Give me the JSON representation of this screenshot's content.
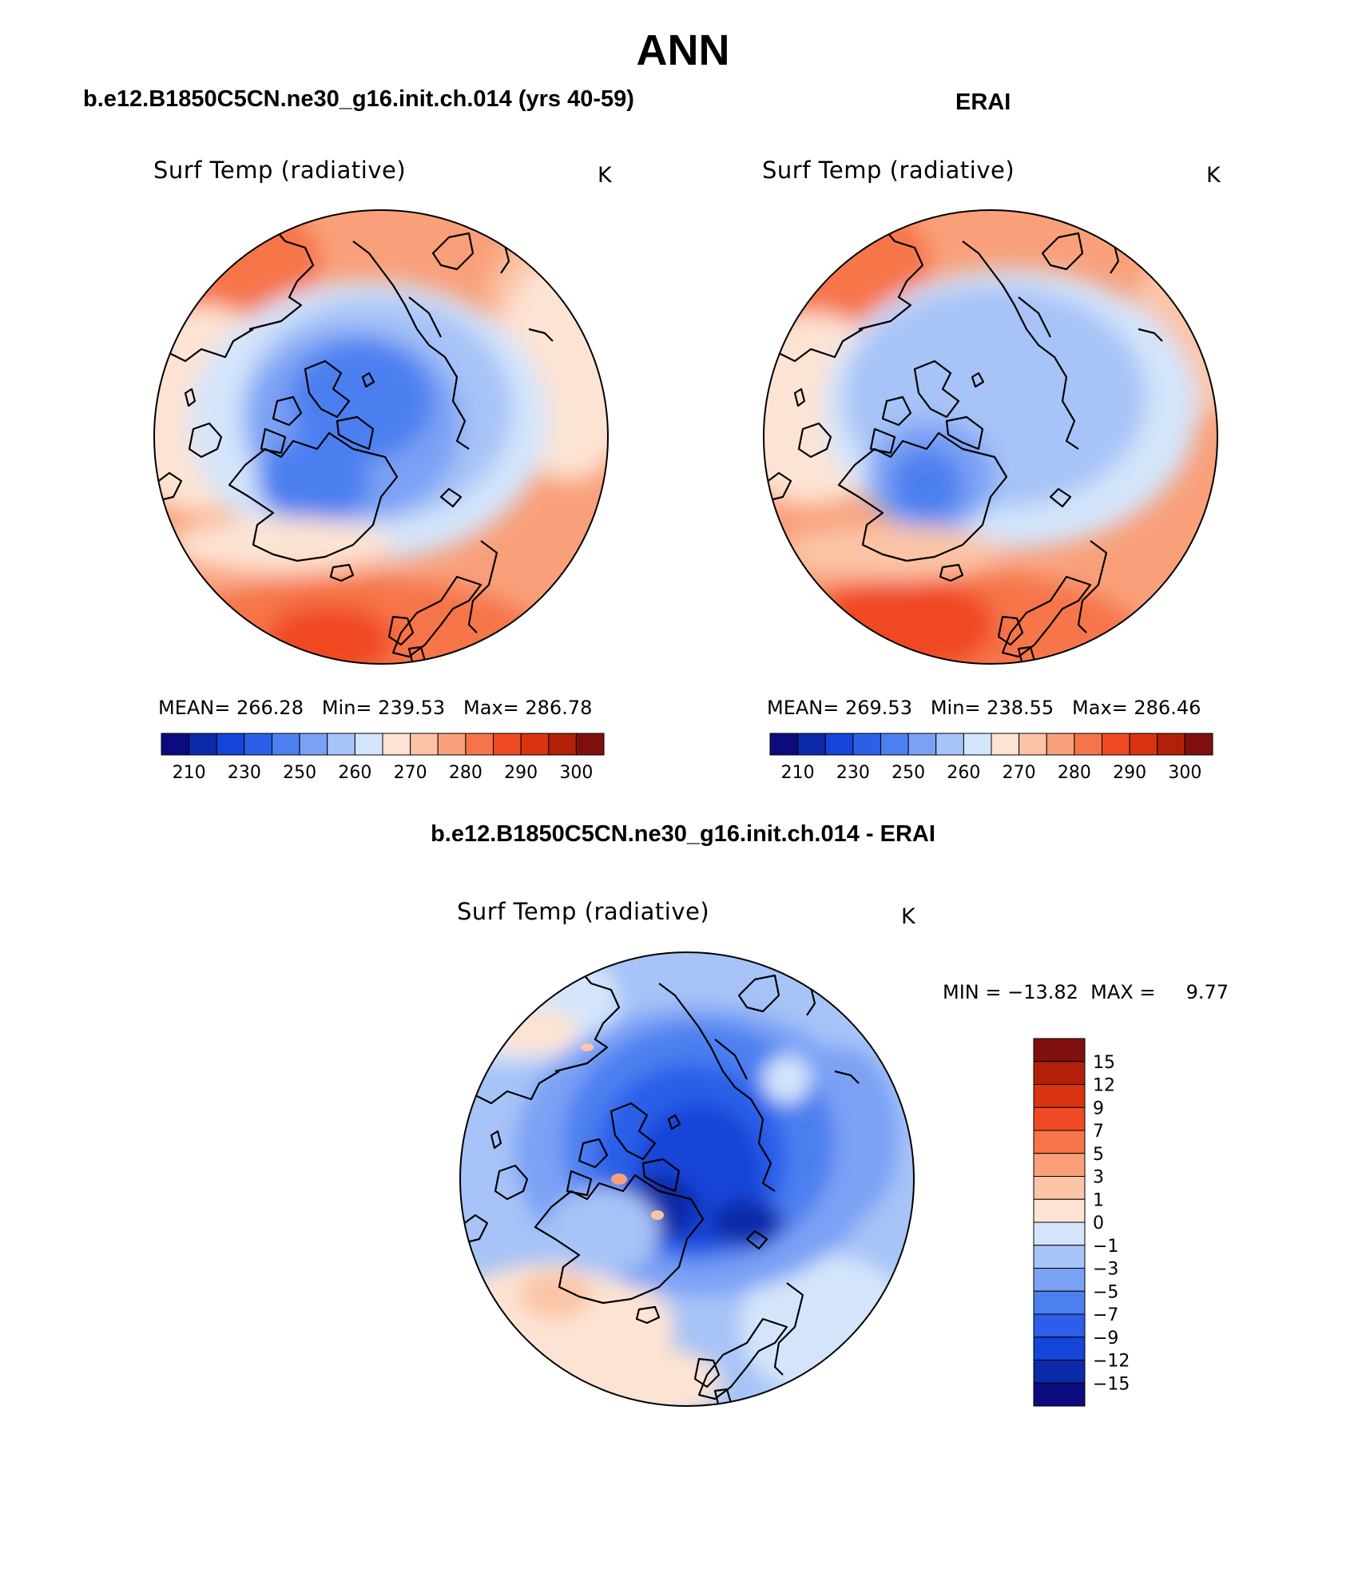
{
  "figure": {
    "title": "ANN",
    "left_header": "b.e12.B1850C5CN.ne30_g16.init.ch.014 (yrs 40-59)",
    "right_header": "ERAI",
    "diff_header": "b.e12.B1850C5CN.ne30_g16.init.ch.014 - ERAI"
  },
  "panels": {
    "model": {
      "variable": "Surf Temp (radiative)",
      "units": "K",
      "stats": "MEAN= 266.28   Min= 239.53   Max= 286.78"
    },
    "obs": {
      "variable": "Surf Temp (radiative)",
      "units": "K",
      "stats": "MEAN= 269.53   Min= 238.55   Max= 286.46"
    },
    "diff": {
      "variable": "Surf Temp (radiative)",
      "units": "K",
      "stats": "MIN = −13.82  MAX =     9.77"
    }
  },
  "chart_data": [
    {
      "type": "heatmap",
      "projection": "north-polar-stereographic",
      "title": "Surf Temp (radiative)",
      "units": "K",
      "mean": 266.28,
      "min": 239.53,
      "max": 286.78,
      "colorbar_labels": [
        "210",
        "230",
        "250",
        "260",
        "270",
        "280",
        "290",
        "300"
      ],
      "colors": [
        "#0b0b7e",
        "#0a2aa8",
        "#1444d8",
        "#2c5ee8",
        "#4c7ff0",
        "#7ba1f5",
        "#a7c3f7",
        "#d4e5fb",
        "#fde3d3",
        "#fbc4a6",
        "#f9a07a",
        "#f6744a",
        "#f04a24",
        "#d9330f",
        "#b3200a",
        "#801010"
      ]
    },
    {
      "type": "heatmap",
      "projection": "north-polar-stereographic",
      "title": "Surf Temp (radiative)",
      "units": "K",
      "mean": 269.53,
      "min": 238.55,
      "max": 286.46,
      "colorbar_labels": [
        "210",
        "230",
        "250",
        "260",
        "270",
        "280",
        "290",
        "300"
      ],
      "colors": [
        "#0b0b7e",
        "#0a2aa8",
        "#1444d8",
        "#2c5ee8",
        "#4c7ff0",
        "#7ba1f5",
        "#a7c3f7",
        "#d4e5fb",
        "#fde3d3",
        "#fbc4a6",
        "#f9a07a",
        "#f6744a",
        "#f04a24",
        "#d9330f",
        "#b3200a",
        "#801010"
      ]
    },
    {
      "type": "heatmap",
      "projection": "north-polar-stereographic",
      "title": "Surf Temp (radiative)",
      "units": "K",
      "min": -13.82,
      "max": 9.77,
      "colorbar_labels": [
        "15",
        "12",
        "9",
        "7",
        "5",
        "3",
        "1",
        "0",
        "−1",
        "−3",
        "−5",
        "−7",
        "−9",
        "−12",
        "−15"
      ],
      "colors": [
        "#801010",
        "#b3200a",
        "#d9330f",
        "#f04a24",
        "#f6744a",
        "#f9a07a",
        "#fbc4a6",
        "#fde3d3",
        "#d4e5fb",
        "#a7c3f7",
        "#7ba1f5",
        "#4c7ff0",
        "#2c5ee8",
        "#1444d8",
        "#0a2aa8",
        "#0b0b7e"
      ]
    }
  ]
}
